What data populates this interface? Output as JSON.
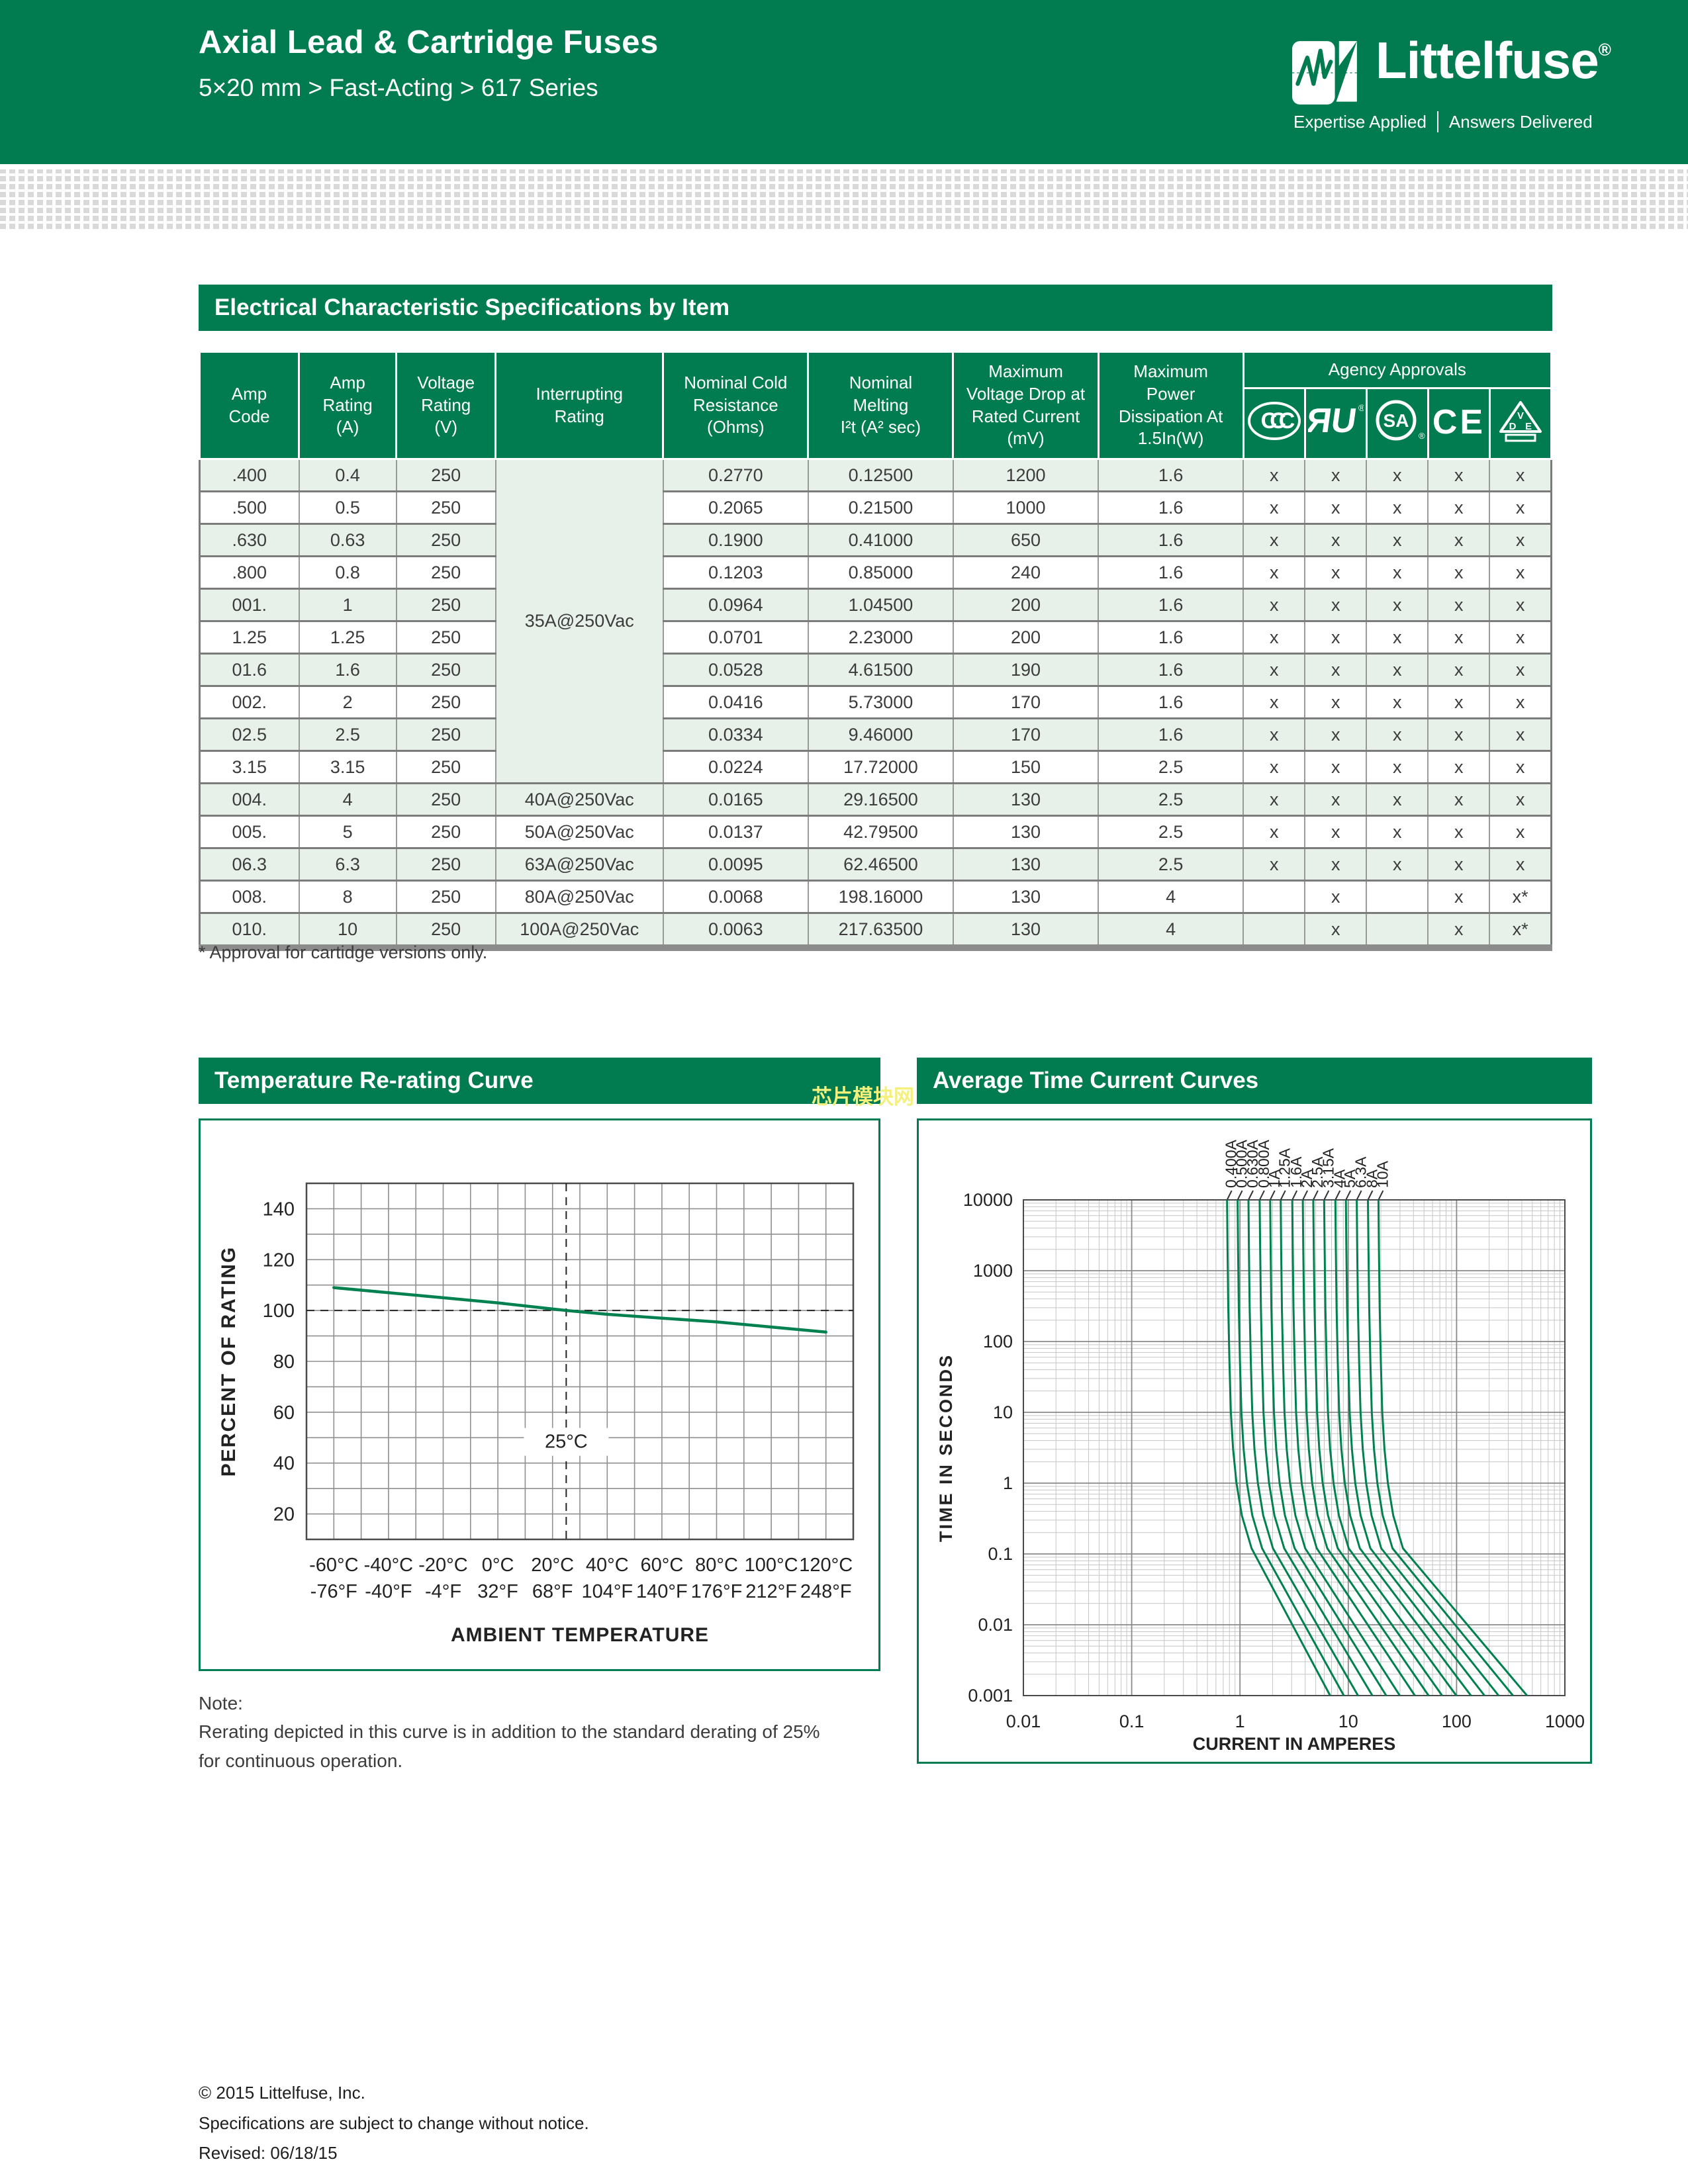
{
  "colors": {
    "brand_green": "#007C50",
    "row_green": "#E7F1EA",
    "merged_green": "#DDEBE2",
    "curve_green": "#00814F",
    "watermark_yellow": "#F4F07C",
    "halftone_gray": "#D9D9D9",
    "text_dark": "#3C3C3C"
  },
  "page": {
    "header": {
      "title": "Axial Lead & Cartridge Fuses",
      "subtitle": "5×20 mm > Fast-Acting > 617 Series",
      "logo": {
        "brand": "Littelfuse",
        "registered": "®",
        "tagline_left": "Expertise Applied",
        "tagline_right": "Answers Delivered"
      }
    },
    "sections": {
      "table_title": "Electrical Characteristic Specifications by Item",
      "left_chart_title": "Temperature Re-rating Curve",
      "right_chart_title": "Average Time Current Curves",
      "watermark": "芯片模块网"
    },
    "footnote": "* Approval for cartidge versions only.",
    "note": {
      "label": "Note:",
      "line1": "Rerating depicted in this curve is in addition to the standard derating of 25%",
      "line2": "for continuous operation."
    },
    "footer": {
      "line1": "© 2015 Littelfuse, Inc.",
      "line2": "Specifications are subject to change without notice.",
      "line3": "Revised: 06/18/15"
    }
  },
  "table": {
    "columns": [
      "Amp\nCode",
      "Amp\nRating\n(A)",
      "Voltage\nRating\n(V)",
      "Interrupting\nRating",
      "Nominal Cold\nResistance\n(Ohms)",
      "Nominal\nMelting\nI²t (A² sec)",
      "Maximum\nVoltage Drop at\nRated Current\n(mV)",
      "Maximum\nPower\nDissipation At\n1.5In(W)"
    ],
    "agency_header": "Agency Approvals",
    "agency_icons": [
      "ccc",
      "ul",
      "csa",
      "ce",
      "vde"
    ],
    "merged_interrupting": {
      "label": "35A@250Vac",
      "rows": 10
    },
    "rows": [
      {
        "code": ".400",
        "amp": "0.4",
        "volt": "250",
        "ir": null,
        "ohms": "0.2770",
        "i2t": "0.12500",
        "mv": "1200",
        "w": "1.6",
        "app": [
          "x",
          "x",
          "x",
          "x",
          "x"
        ]
      },
      {
        "code": ".500",
        "amp": "0.5",
        "volt": "250",
        "ir": null,
        "ohms": "0.2065",
        "i2t": "0.21500",
        "mv": "1000",
        "w": "1.6",
        "app": [
          "x",
          "x",
          "x",
          "x",
          "x"
        ]
      },
      {
        "code": ".630",
        "amp": "0.63",
        "volt": "250",
        "ir": null,
        "ohms": "0.1900",
        "i2t": "0.41000",
        "mv": "650",
        "w": "1.6",
        "app": [
          "x",
          "x",
          "x",
          "x",
          "x"
        ]
      },
      {
        "code": ".800",
        "amp": "0.8",
        "volt": "250",
        "ir": null,
        "ohms": "0.1203",
        "i2t": "0.85000",
        "mv": "240",
        "w": "1.6",
        "app": [
          "x",
          "x",
          "x",
          "x",
          "x"
        ]
      },
      {
        "code": "001.",
        "amp": "1",
        "volt": "250",
        "ir": null,
        "ohms": "0.0964",
        "i2t": "1.04500",
        "mv": "200",
        "w": "1.6",
        "app": [
          "x",
          "x",
          "x",
          "x",
          "x"
        ]
      },
      {
        "code": "1.25",
        "amp": "1.25",
        "volt": "250",
        "ir": null,
        "ohms": "0.0701",
        "i2t": "2.23000",
        "mv": "200",
        "w": "1.6",
        "app": [
          "x",
          "x",
          "x",
          "x",
          "x"
        ]
      },
      {
        "code": "01.6",
        "amp": "1.6",
        "volt": "250",
        "ir": null,
        "ohms": "0.0528",
        "i2t": "4.61500",
        "mv": "190",
        "w": "1.6",
        "app": [
          "x",
          "x",
          "x",
          "x",
          "x"
        ]
      },
      {
        "code": "002.",
        "amp": "2",
        "volt": "250",
        "ir": null,
        "ohms": "0.0416",
        "i2t": "5.73000",
        "mv": "170",
        "w": "1.6",
        "app": [
          "x",
          "x",
          "x",
          "x",
          "x"
        ]
      },
      {
        "code": "02.5",
        "amp": "2.5",
        "volt": "250",
        "ir": null,
        "ohms": "0.0334",
        "i2t": "9.46000",
        "mv": "170",
        "w": "1.6",
        "app": [
          "x",
          "x",
          "x",
          "x",
          "x"
        ]
      },
      {
        "code": "3.15",
        "amp": "3.15",
        "volt": "250",
        "ir": null,
        "ohms": "0.0224",
        "i2t": "17.72000",
        "mv": "150",
        "w": "2.5",
        "app": [
          "x",
          "x",
          "x",
          "x",
          "x"
        ]
      },
      {
        "code": "004.",
        "amp": "4",
        "volt": "250",
        "ir": "40A@250Vac",
        "ohms": "0.0165",
        "i2t": "29.16500",
        "mv": "130",
        "w": "2.5",
        "app": [
          "x",
          "x",
          "x",
          "x",
          "x"
        ]
      },
      {
        "code": "005.",
        "amp": "5",
        "volt": "250",
        "ir": "50A@250Vac",
        "ohms": "0.0137",
        "i2t": "42.79500",
        "mv": "130",
        "w": "2.5",
        "app": [
          "x",
          "x",
          "x",
          "x",
          "x"
        ]
      },
      {
        "code": "06.3",
        "amp": "6.3",
        "volt": "250",
        "ir": "63A@250Vac",
        "ohms": "0.0095",
        "i2t": "62.46500",
        "mv": "130",
        "w": "2.5",
        "app": [
          "x",
          "x",
          "x",
          "x",
          "x"
        ]
      },
      {
        "code": "008.",
        "amp": "8",
        "volt": "250",
        "ir": "80A@250Vac",
        "ohms": "0.0068",
        "i2t": "198.16000",
        "mv": "130",
        "w": "4",
        "app": [
          "",
          "x",
          "",
          "x",
          "x*"
        ]
      },
      {
        "code": "010.",
        "amp": "10",
        "volt": "250",
        "ir": "100A@250Vac",
        "ohms": "0.0063",
        "i2t": "217.63500",
        "mv": "130",
        "w": "4",
        "app": [
          "",
          "x",
          "",
          "x",
          "x*"
        ]
      }
    ]
  },
  "chart_data": [
    {
      "type": "line",
      "title": "Temperature Re-rating Curve",
      "xlabel": "AMBIENT TEMPERATURE",
      "ylabel": "PERCENT OF RATING",
      "xlim": [
        -70,
        130
      ],
      "ylim": [
        10,
        150
      ],
      "grid_step": 10,
      "x_ticks": [
        {
          "v": -60,
          "c": "-60°C",
          "f": "-76°F"
        },
        {
          "v": -40,
          "c": "-40°C",
          "f": "-40°F"
        },
        {
          "v": -20,
          "c": "-20°C",
          "f": "-4°F"
        },
        {
          "v": 0,
          "c": "0°C",
          "f": "32°F"
        },
        {
          "v": 20,
          "c": "20°C",
          "f": "68°F"
        },
        {
          "v": 40,
          "c": "40°C",
          "f": "104°F"
        },
        {
          "v": 60,
          "c": "60°C",
          "f": "140°F"
        },
        {
          "v": 80,
          "c": "80°C",
          "f": "176°F"
        },
        {
          "v": 100,
          "c": "100°C",
          "f": "212°F"
        },
        {
          "v": 120,
          "c": "120°C",
          "f": "248°F"
        }
      ],
      "y_ticks": [
        20,
        40,
        60,
        80,
        100,
        120,
        140
      ],
      "reference": {
        "h_line": 100,
        "v_line": 25,
        "v_label": "25°C"
      },
      "series": [
        {
          "name": "re-rating",
          "points": [
            [
              -60,
              109
            ],
            [
              -40,
              107
            ],
            [
              -20,
              105
            ],
            [
              0,
              103
            ],
            [
              25,
              100
            ],
            [
              40,
              98.5
            ],
            [
              60,
              97
            ],
            [
              80,
              95.5
            ],
            [
              100,
              93.5
            ],
            [
              120,
              91.5
            ]
          ]
        }
      ]
    },
    {
      "type": "line",
      "title": "Average Time Current Curves",
      "xlabel": "CURRENT IN AMPERES",
      "ylabel": "TIME IN SECONDS",
      "log": true,
      "xlim": [
        0.01,
        1000
      ],
      "ylim": [
        0.001,
        10000
      ],
      "x_ticks": [
        "0.01",
        "0.1",
        "1",
        "10",
        "100",
        "1000"
      ],
      "y_ticks": [
        "0.001",
        "0.01",
        "0.1",
        "1",
        "10",
        "100",
        "1000",
        "10000"
      ],
      "shape": [
        [
          1.9,
          10000
        ],
        [
          1.92,
          2000
        ],
        [
          1.95,
          300
        ],
        [
          2.0,
          50
        ],
        [
          2.06,
          10
        ],
        [
          2.16,
          3
        ],
        [
          2.32,
          1
        ],
        [
          2.6,
          0.35
        ],
        [
          3.2,
          0.12
        ]
      ],
      "curves": [
        {
          "label": "0.400A",
          "rating": 0.4,
          "end_current": 6.8
        },
        {
          "label": "0.500A",
          "rating": 0.5,
          "end_current": 9.1
        },
        {
          "label": "0.630A",
          "rating": 0.63,
          "end_current": 12.3
        },
        {
          "label": "0.800A",
          "rating": 0.8,
          "end_current": 16.7
        },
        {
          "label": "1A",
          "rating": 1,
          "end_current": 22.4
        },
        {
          "label": "1.25A",
          "rating": 1.25,
          "end_current": 29.9
        },
        {
          "label": "1.6A",
          "rating": 1.6,
          "end_current": 41.2
        },
        {
          "label": "2A",
          "rating": 2,
          "end_current": 55.1
        },
        {
          "label": "2.5A",
          "rating": 2.5,
          "end_current": 73.6
        },
        {
          "label": "3.15A",
          "rating": 3.15,
          "end_current": 99.4
        },
        {
          "label": "4A",
          "rating": 4,
          "end_current": 135.7
        },
        {
          "label": "5A",
          "rating": 5,
          "end_current": 181.2
        },
        {
          "label": "6.3A",
          "rating": 6.3,
          "end_current": 244.5
        },
        {
          "label": "8A",
          "rating": 8,
          "end_current": 331.8
        },
        {
          "label": "10A",
          "rating": 10,
          "end_current": 447.1
        }
      ]
    }
  ]
}
